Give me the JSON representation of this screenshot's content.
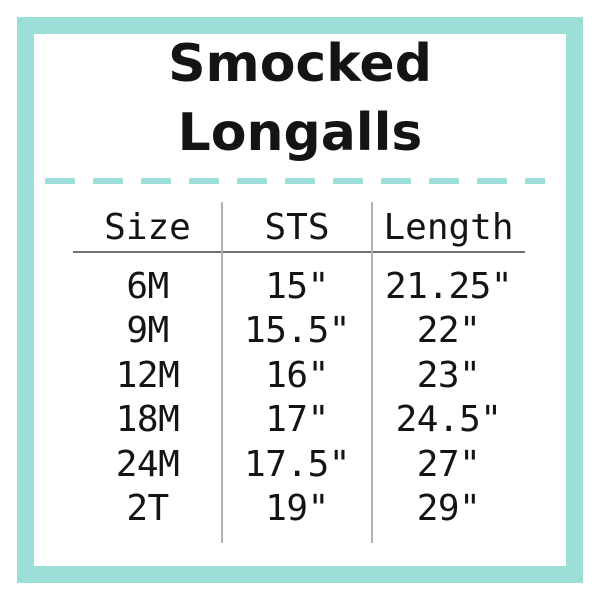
{
  "title": {
    "line1": "Smocked",
    "line2": "Longalls"
  },
  "colors": {
    "accent_teal": "#9BDFD8",
    "header_rule": "#707070",
    "column_rule": "#B0B0B0",
    "text": "#141414"
  },
  "chart_data": {
    "type": "table",
    "title": "Smocked Longalls",
    "columns": [
      "Size",
      "STS",
      "Length"
    ],
    "rows": [
      [
        "6M",
        "15\"",
        "21.25\""
      ],
      [
        "9M",
        "15.5\"",
        "22\""
      ],
      [
        "12M",
        "16\"",
        "23\""
      ],
      [
        "18M",
        "17\"",
        "24.5\""
      ],
      [
        "24M",
        "17.5\"",
        "27\""
      ],
      [
        "2T",
        "19\"",
        "29\""
      ]
    ],
    "layout": {
      "grid": "column dividers and header underline only",
      "header_position": "top row",
      "value_unit": "inches"
    }
  }
}
